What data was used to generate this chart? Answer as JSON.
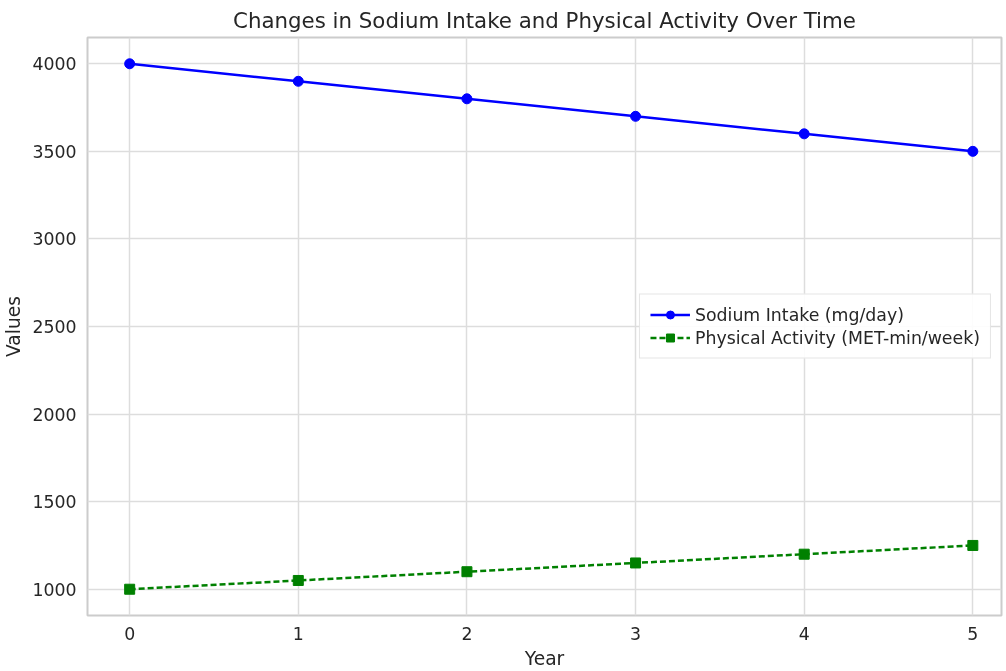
{
  "chart_data": {
    "type": "line",
    "title": "Changes in Sodium Intake and Physical Activity Over Time",
    "xlabel": "Year",
    "ylabel": "Values",
    "x": [
      0,
      1,
      2,
      3,
      4,
      5
    ],
    "series": [
      {
        "name": "Sodium Intake (mg/day)",
        "color": "#0000ff",
        "values": [
          4000,
          3900,
          3800,
          3700,
          3600,
          3500
        ],
        "marker": "circle",
        "line_style": "solid"
      },
      {
        "name": "Physical Activity (MET-min/week)",
        "color": "#008000",
        "values": [
          1000,
          1050,
          1100,
          1150,
          1200,
          1250
        ],
        "marker": "square",
        "line_style": "dashed"
      }
    ],
    "xlim": [
      -0.25,
      5.17
    ],
    "ylim": [
      850,
      4150
    ],
    "xticks": [
      0,
      1,
      2,
      3,
      4,
      5
    ],
    "yticks": [
      1000,
      1500,
      2000,
      2500,
      3000,
      3500,
      4000
    ],
    "grid": true,
    "legend": "right"
  }
}
